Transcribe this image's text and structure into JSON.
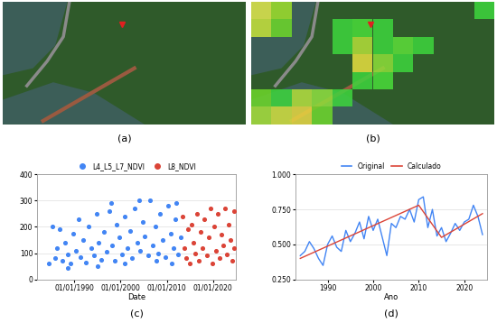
{
  "images": [
    {
      "panel": "(a)"
    },
    {
      "panel": "(b)",
      "cells": [
        [
          "#e0e84a",
          "#9ee02a",
          null,
          null,
          null,
          null,
          null,
          null,
          null,
          null,
          null,
          "#3ed63e"
        ],
        [
          "#c8e43a",
          "#6ed82a",
          null,
          null,
          "#3ed63e",
          "#4ade3a",
          "#3ed63e",
          null,
          null,
          null,
          null,
          null
        ],
        [
          null,
          null,
          null,
          null,
          "#3ed63e",
          "#b4e03a",
          "#3ed63e",
          "#5ee03a",
          "#3ed63e",
          null,
          null,
          null
        ],
        [
          null,
          null,
          null,
          null,
          null,
          "#e8e040",
          "#8ee03a",
          "#3ed63e",
          null,
          null,
          null,
          null
        ],
        [
          null,
          null,
          null,
          null,
          null,
          "#3ed63e",
          "#4ade3a",
          null,
          null,
          null,
          null,
          null
        ],
        [
          "#6ed82a",
          "#3ed63e",
          "#b4e03a",
          "#8ee03a",
          "#3ed63e",
          null,
          null,
          null,
          null,
          null,
          null,
          null
        ],
        [
          "#a8e03a",
          "#d4e040",
          "#e8d840",
          "#6ed82a",
          null,
          null,
          null,
          null,
          null,
          null,
          null,
          null
        ]
      ]
    }
  ],
  "chart_data": [
    {
      "panel": "(c)",
      "type": "scatter",
      "x_label": "Date",
      "xlim": [
        1982,
        2025
      ],
      "xticks": [
        {
          "value": 1990,
          "label": "01/01/1990"
        },
        {
          "value": 2000,
          "label": "01/01/2000"
        },
        {
          "value": 2010,
          "label": "01/01/2010"
        },
        {
          "value": 2020,
          "label": "01/01/2020"
        }
      ],
      "ylim": [
        0,
        400
      ],
      "yticks": [
        0,
        100,
        200,
        300,
        400
      ],
      "grid": true,
      "legend": "top",
      "series": [
        {
          "name": "L4_L5_L7_NDVI",
          "color": "#4285f4",
          "x": [
            1984.5,
            1985.2,
            1985.8,
            1986.3,
            1986.9,
            1987.4,
            1988.0,
            1988.6,
            1989.1,
            1989.7,
            1990.3,
            1990.9,
            1991.4,
            1992.0,
            1992.6,
            1993.1,
            1993.7,
            1994.2,
            1994.8,
            1995.3,
            1995.9,
            1996.4,
            1997.0,
            1997.5,
            1998.1,
            1998.7,
            1999.2,
            1999.8,
            2000.3,
            2000.9,
            2001.4,
            2002.0,
            2002.5,
            2003.1,
            2003.6,
            2004.2,
            2004.8,
            2005.3,
            2005.9,
            2006.4,
            2007.0,
            2007.5,
            2008.1,
            2008.6,
            2009.2,
            2009.7,
            2010.3,
            2010.8,
            2011.4,
            2011.9,
            2012.5,
            2013.0,
            2001.0,
            1995.0,
            2007.8,
            1988.5,
            2011.0,
            2004.0,
            1998.0,
            2012.0
          ],
          "values": [
            60,
            200,
            80,
            120,
            190,
            70,
            140,
            95,
            60,
            175,
            110,
            230,
            85,
            150,
            65,
            200,
            120,
            90,
            250,
            140,
            75,
            180,
            105,
            260,
            130,
            70,
            210,
            160,
            95,
            240,
            120,
            185,
            80,
            270,
            140,
            110,
            220,
            165,
            90,
            300,
            130,
            200,
            100,
            250,
            150,
            85,
            280,
            175,
            120,
            230,
            95,
            160,
            60,
            50,
            70,
            45,
            60,
            300,
            290,
            290
          ]
        },
        {
          "name": "L8_NDVI",
          "color": "#db4437",
          "x": [
            2013.4,
            2013.8,
            2014.2,
            2014.6,
            2015.0,
            2015.4,
            2015.8,
            2016.2,
            2016.6,
            2017.0,
            2017.4,
            2017.8,
            2018.2,
            2018.6,
            2019.0,
            2019.4,
            2019.8,
            2020.2,
            2020.6,
            2021.0,
            2021.4,
            2021.8,
            2022.2,
            2022.6,
            2023.0,
            2023.4,
            2023.8,
            2024.2,
            2024.5,
            2024.6
          ],
          "values": [
            240,
            120,
            80,
            190,
            60,
            210,
            140,
            100,
            250,
            70,
            180,
            120,
            230,
            90,
            160,
            270,
            60,
            200,
            110,
            250,
            80,
            170,
            130,
            270,
            95,
            210,
            150,
            70,
            260,
            120
          ]
        }
      ]
    },
    {
      "panel": "(d)",
      "type": "line",
      "x_label": "Ano",
      "xlim": [
        1983,
        2025
      ],
      "xticks": [
        1990,
        2000,
        2010,
        2020
      ],
      "ylim": [
        0.25,
        1.0
      ],
      "yticks": [
        {
          "value": 0.25,
          "label": "0.250"
        },
        {
          "value": 0.5,
          "label": "0.500"
        },
        {
          "value": 0.75,
          "label": "0.750"
        },
        {
          "value": 1.0,
          "label": "1.000"
        }
      ],
      "grid": true,
      "legend": "top",
      "series": [
        {
          "name": "Original",
          "color": "#4285f4",
          "x": [
            1984,
            1985,
            1986,
            1987,
            1988,
            1989,
            1990,
            1991,
            1992,
            1993,
            1994,
            1995,
            1996,
            1997,
            1998,
            1999,
            2000,
            2001,
            2002,
            2003,
            2004,
            2005,
            2006,
            2007,
            2008,
            2009,
            2010,
            2011,
            2012,
            2013,
            2014,
            2015,
            2016,
            2017,
            2018,
            2019,
            2020,
            2021,
            2022,
            2023,
            2024
          ],
          "values": [
            0.42,
            0.45,
            0.52,
            0.47,
            0.4,
            0.35,
            0.5,
            0.56,
            0.48,
            0.45,
            0.6,
            0.52,
            0.58,
            0.66,
            0.54,
            0.7,
            0.6,
            0.68,
            0.55,
            0.42,
            0.65,
            0.62,
            0.7,
            0.68,
            0.75,
            0.66,
            0.82,
            0.84,
            0.62,
            0.75,
            0.56,
            0.62,
            0.52,
            0.58,
            0.65,
            0.6,
            0.66,
            0.68,
            0.78,
            0.7,
            0.57
          ]
        },
        {
          "name": "Calculado",
          "color": "#db4437",
          "x": [
            1984,
            2010,
            2015,
            2024
          ],
          "values": [
            0.4,
            0.78,
            0.55,
            0.72
          ]
        }
      ]
    }
  ]
}
